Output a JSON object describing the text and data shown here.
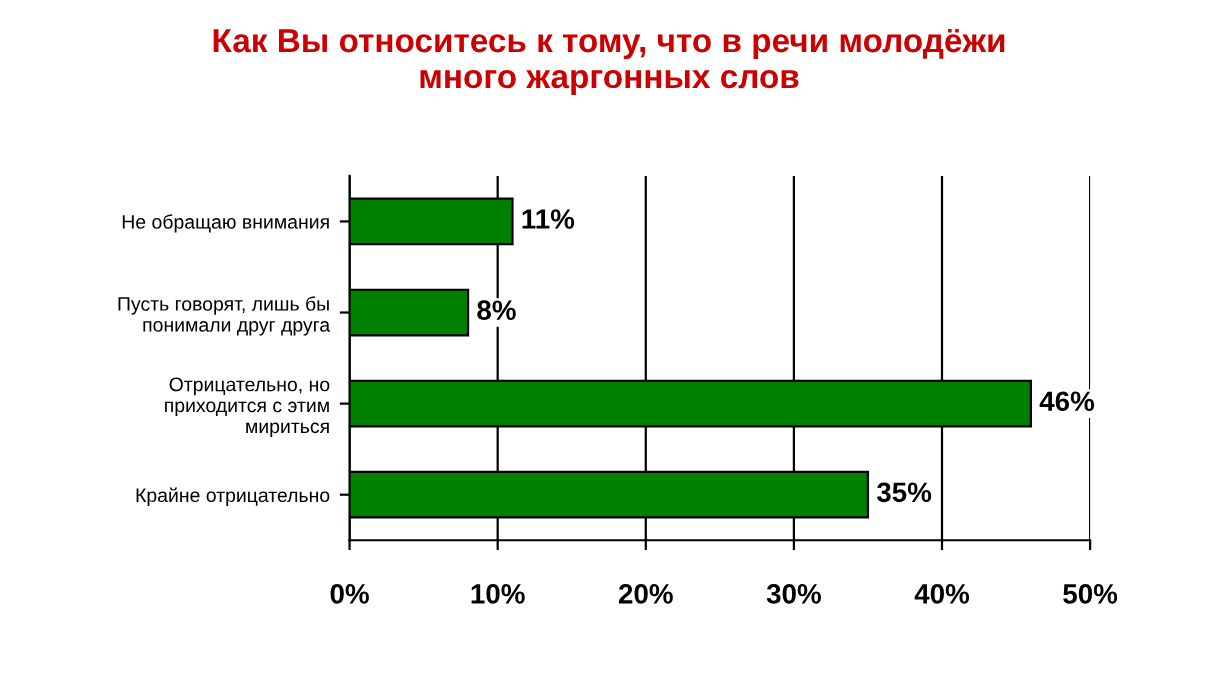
{
  "chart_data": {
    "type": "bar",
    "orientation": "horizontal",
    "title": "Как Вы относитесь к тому, что в речи молодёжи\nмного жаргонных слов",
    "categories": [
      "Не обращаю внимания",
      "Пусть говорят, лишь бы\nпонимали друг друга",
      "Отрицательно, но\nприходится с этим\nмириться",
      "Крайне отрицательно"
    ],
    "values": [
      11,
      8,
      46,
      35
    ],
    "value_labels": [
      "11%",
      "8%",
      "46%",
      "35%"
    ],
    "color": "#008000",
    "xlim": [
      0,
      50
    ],
    "xticks": [
      {
        "value": 0,
        "label": "0%"
      },
      {
        "value": 10,
        "label": "10%"
      },
      {
        "value": 20,
        "label": "20%"
      },
      {
        "value": 30,
        "label": "30%"
      },
      {
        "value": 40,
        "label": "40%"
      },
      {
        "value": 50,
        "label": "50%"
      }
    ],
    "grid": "x",
    "legend": false
  }
}
